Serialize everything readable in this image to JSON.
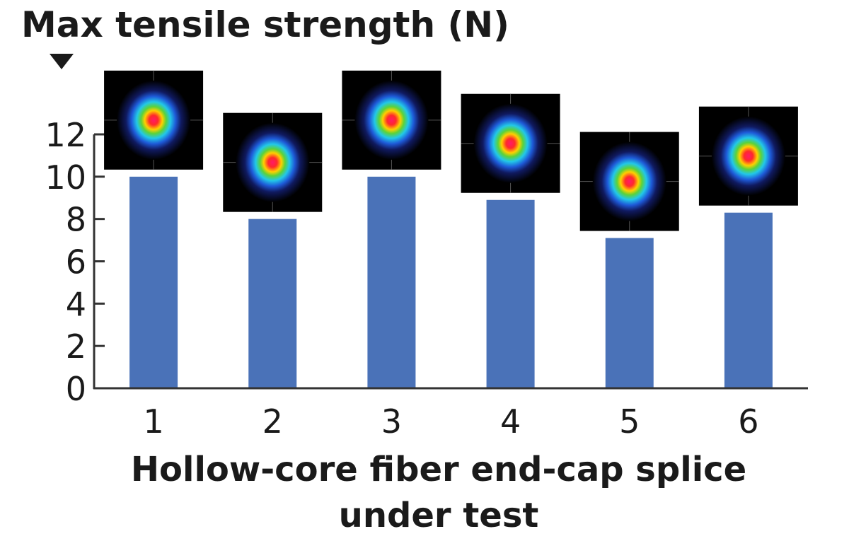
{
  "chart_data": {
    "type": "bar",
    "title": "",
    "ylabel": "Max tensile strength (N)",
    "xlabel": [
      "Hollow-core fiber end-cap splice",
      "under test"
    ],
    "categories": [
      "1",
      "2",
      "3",
      "4",
      "5",
      "6"
    ],
    "values": [
      10,
      8,
      10,
      8.9,
      7.1,
      8.3
    ],
    "ylim": [
      0,
      12
    ],
    "yticks": [
      "0",
      "2",
      "4",
      "6",
      "8",
      "10",
      "12"
    ],
    "grid": false,
    "legend": "none",
    "bar_color": "#4a72b8",
    "insets": "beam profile image above each bar"
  }
}
